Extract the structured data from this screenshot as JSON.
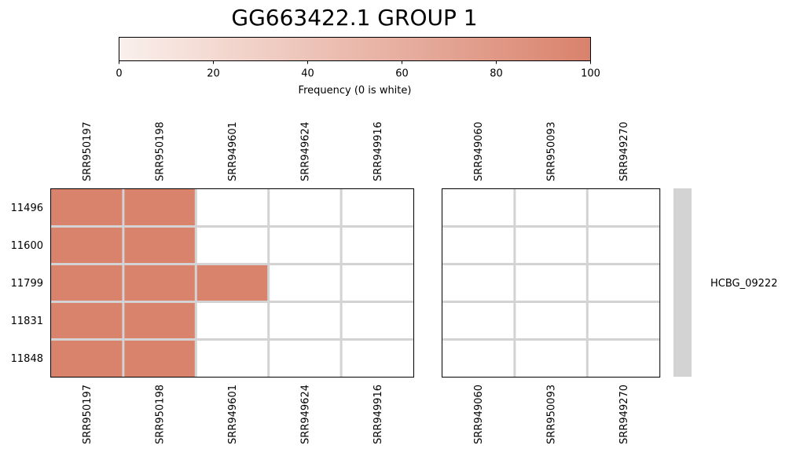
{
  "chart_data": {
    "type": "heatmap",
    "title": "GG663422.1 GROUP 1",
    "colorbar": {
      "label": "Frequency (0 is white)",
      "range": [
        0,
        100
      ],
      "ticks": [
        0,
        20,
        40,
        60,
        80,
        100
      ],
      "color_low": "#faf0ec",
      "color_high": "#d9826c",
      "orientation": "horizontal",
      "placement": "top"
    },
    "rows": [
      "11496",
      "11600",
      "11799",
      "11831",
      "11848"
    ],
    "panels": [
      {
        "columns": [
          "SRR950197",
          "SRR950198",
          "SRR949601",
          "SRR949624",
          "SRR949916"
        ],
        "values": [
          [
            100,
            100,
            0,
            0,
            0
          ],
          [
            100,
            100,
            0,
            0,
            0
          ],
          [
            100,
            100,
            100,
            0,
            0
          ],
          [
            100,
            100,
            0,
            0,
            0
          ],
          [
            100,
            100,
            0,
            0,
            0
          ]
        ]
      },
      {
        "columns": [
          "SRR949060",
          "SRR950093",
          "SRR949270"
        ],
        "values": [
          [
            0,
            0,
            0
          ],
          [
            0,
            0,
            0
          ],
          [
            0,
            0,
            0
          ],
          [
            0,
            0,
            0
          ],
          [
            0,
            0,
            0
          ]
        ]
      }
    ],
    "row_annotation": {
      "label": "HCBG_09222",
      "color": "#d3d3d3"
    },
    "grid_color": "#d3d3d3"
  }
}
